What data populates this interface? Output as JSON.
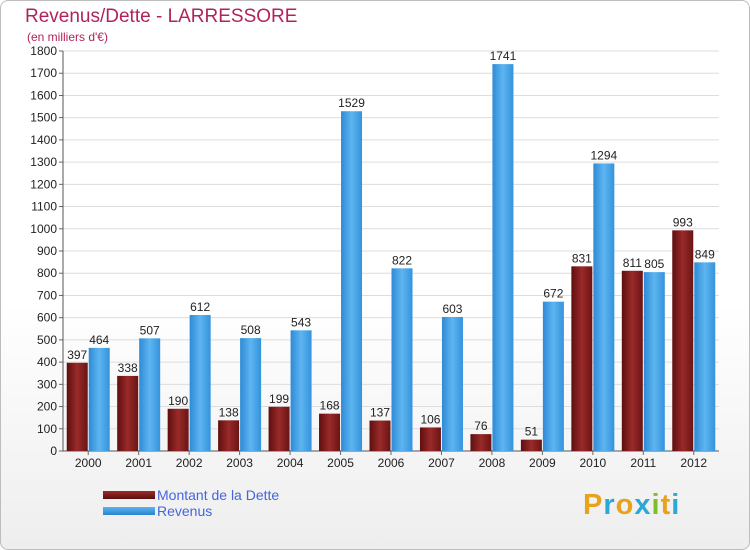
{
  "chart_data": {
    "type": "bar",
    "title": "Revenus/Dette - LARRESSORE",
    "subtitle": "(en milliers d'€)",
    "categories": [
      "2000",
      "2001",
      "2002",
      "2003",
      "2004",
      "2005",
      "2006",
      "2007",
      "2008",
      "2009",
      "2010",
      "2011",
      "2012"
    ],
    "series": [
      {
        "name": "Montant de la Dette",
        "color": "#7a1a1a",
        "values": [
          397,
          338,
          190,
          138,
          199,
          168,
          137,
          106,
          76,
          51,
          831,
          811,
          993
        ]
      },
      {
        "name": "Revenus",
        "color": "#3d9ee6",
        "values": [
          464,
          507,
          612,
          508,
          543,
          1529,
          822,
          603,
          1741,
          672,
          1294,
          805,
          849
        ]
      }
    ],
    "ylim": [
      0,
      1800
    ],
    "yticks": [
      0,
      100,
      200,
      300,
      400,
      500,
      600,
      700,
      800,
      900,
      1000,
      1100,
      1200,
      1300,
      1400,
      1500,
      1600,
      1700,
      1800
    ],
    "grid": true,
    "legend_position": "bottom-left"
  },
  "logo_letters": [
    "P",
    "r",
    "o",
    "x",
    "i",
    "t",
    "i"
  ]
}
